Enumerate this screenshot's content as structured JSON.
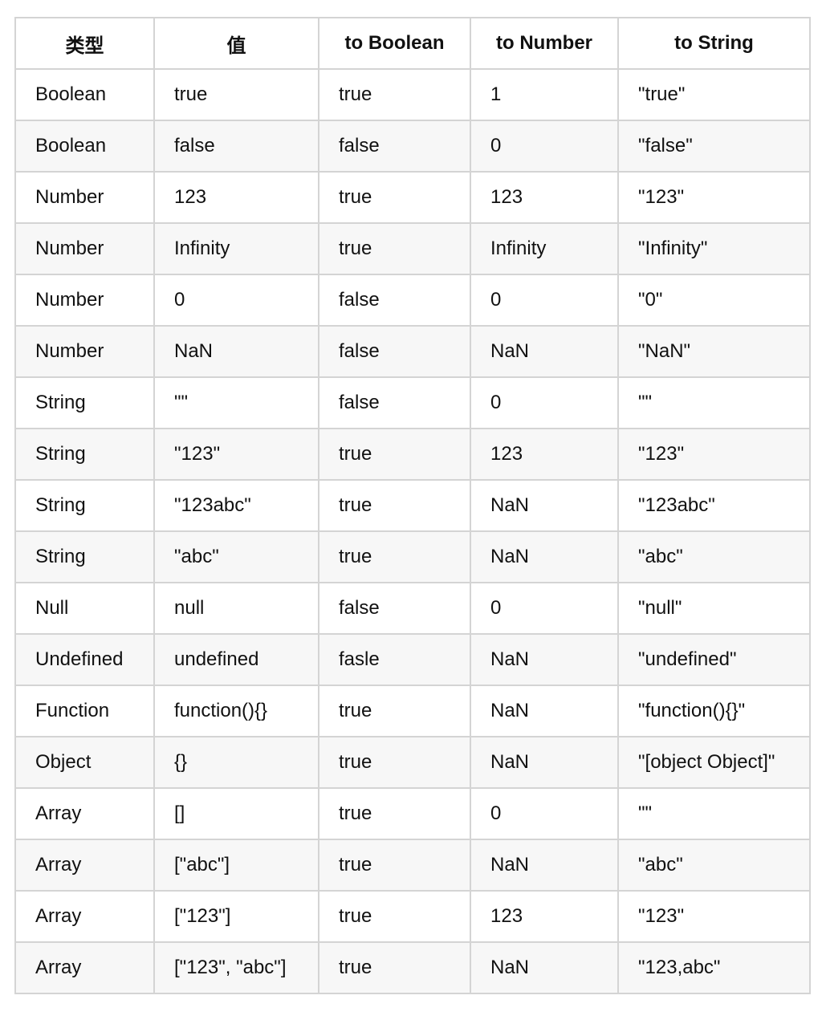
{
  "table": {
    "headers": [
      "类型",
      "值",
      "to Boolean",
      "to Number",
      "to String"
    ],
    "rows": [
      [
        "Boolean",
        "true",
        "true",
        "1",
        "\"true\""
      ],
      [
        "Boolean",
        "false",
        "false",
        "0",
        "\"false\""
      ],
      [
        "Number",
        "123",
        "true",
        "123",
        "\"123\""
      ],
      [
        "Number",
        "Infinity",
        "true",
        "Infinity",
        "\"Infinity\""
      ],
      [
        "Number",
        "0",
        "false",
        "0",
        "\"0\""
      ],
      [
        "Number",
        "NaN",
        "false",
        "NaN",
        "\"NaN\""
      ],
      [
        "String",
        "\"\"",
        "false",
        "0",
        "\"\""
      ],
      [
        "String",
        "\"123\"",
        "true",
        "123",
        "\"123\""
      ],
      [
        "String",
        "\"123abc\"",
        "true",
        "NaN",
        "\"123abc\""
      ],
      [
        "String",
        "\"abc\"",
        "true",
        "NaN",
        "\"abc\""
      ],
      [
        "Null",
        "null",
        "false",
        "0",
        "\"null\""
      ],
      [
        "Undefined",
        "undefined",
        "fasle",
        "NaN",
        "\"undefined\""
      ],
      [
        "Function",
        "function(){}",
        "true",
        "NaN",
        "\"function(){}\""
      ],
      [
        "Object",
        "{}",
        "true",
        "NaN",
        "\"[object Object]\""
      ],
      [
        "Array",
        "[]",
        "true",
        "0",
        "\"\""
      ],
      [
        "Array",
        "[\"abc\"]",
        "true",
        "NaN",
        "\"abc\""
      ],
      [
        "Array",
        "[\"123\"]",
        "true",
        "123",
        "\"123\""
      ],
      [
        "Array",
        "[\"123\", \"abc\"]",
        "true",
        "NaN",
        "\"123,abc\""
      ]
    ]
  }
}
